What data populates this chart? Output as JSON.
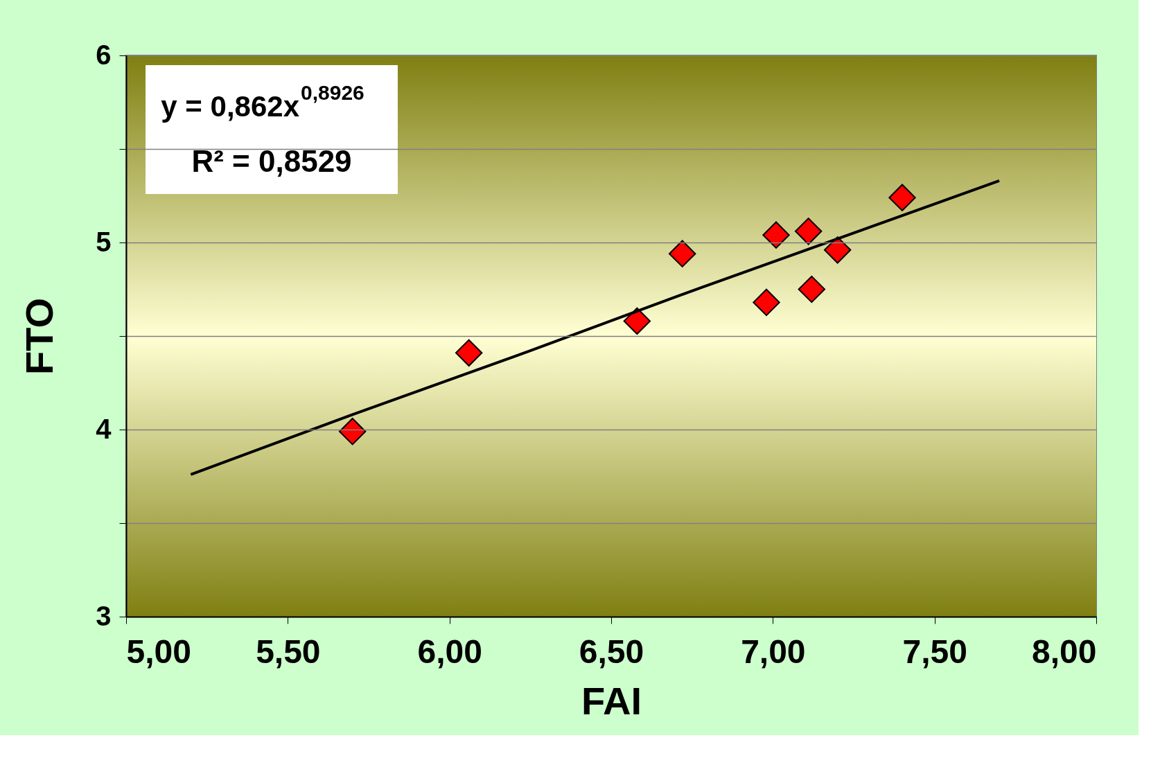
{
  "chart_data": {
    "type": "scatter",
    "xlabel": "FAI",
    "ylabel": "FTO",
    "series": [
      {
        "color": "#ff0000",
        "marker": "diamond",
        "x": [
          5.7,
          6.06,
          6.58,
          6.72,
          6.98,
          7.01,
          7.11,
          7.12,
          7.2,
          7.4
        ],
        "values": [
          3.99,
          4.41,
          4.58,
          4.94,
          4.68,
          5.04,
          5.06,
          4.75,
          4.96,
          5.24
        ]
      },
      {
        "type": "line",
        "color": "#000000",
        "line_style": "solid",
        "x": [
          5.2,
          5.7,
          6.2,
          6.7,
          7.2,
          7.7
        ],
        "values": [
          3.76,
          4.08,
          4.39,
          4.71,
          5.02,
          5.33
        ]
      }
    ],
    "xlim": [
      5,
      8
    ],
    "ylim": [
      3,
      6
    ],
    "xticks": [
      {
        "value": 5,
        "label": "5,00"
      },
      {
        "value": 5.5,
        "label": "5,50"
      },
      {
        "value": 6,
        "label": "6,00"
      },
      {
        "value": 6.5,
        "label": "6,50"
      },
      {
        "value": 7,
        "label": "7,00"
      },
      {
        "value": 7.5,
        "label": "7,50"
      },
      {
        "value": 8,
        "label": "8,00"
      }
    ],
    "yticks": [
      3,
      {
        "value": 3.5,
        "label": null
      },
      4,
      {
        "value": 4.5,
        "label": null
      },
      5,
      {
        "value": 5.5,
        "label": null
      },
      6
    ],
    "grid": "y",
    "annotations": [
      "y = 0,862x$^{0,8926}$",
      "R² = 0,8529"
    ]
  }
}
